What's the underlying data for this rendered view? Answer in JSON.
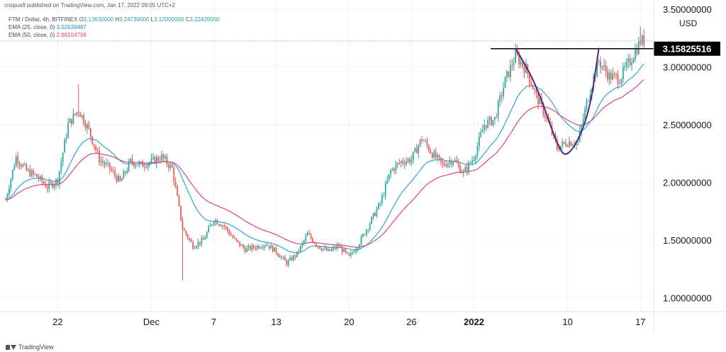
{
  "header": {
    "publisher": "crispus9 published on TradingView.com, Jan 17, 2022 09:05 UTC+2"
  },
  "legend": {
    "symbol": "FTM / Dollar, 4h, BITFINEX",
    "ohlc": [
      {
        "key": "O",
        "value": "3.13630000"
      },
      {
        "key": "H",
        "value": "3.24730000"
      },
      {
        "key": "L",
        "value": "3.12000000"
      },
      {
        "key": "C",
        "value": "3.22420000"
      }
    ],
    "ema1_label": "EMA (25, close, 0)",
    "ema1_value": "3.02639487",
    "ema2_label": "EMA (50, close, 0)",
    "ema2_value": "2.88104768"
  },
  "footer": {
    "brand": "TradingView"
  },
  "colors": {
    "up": "#26a69a",
    "down": "#ef5350",
    "ema25": "#2fa4d8",
    "ema50": "#e0457b",
    "pattern": "#4b2a86",
    "resistance": "#000000",
    "grid": "#f0f3fa",
    "axis_text": "#131722"
  },
  "chart_data": {
    "type": "candlestick",
    "currency": "USD",
    "y_axis_ticks": [
      "3.50000000",
      "3.00000000",
      "2.50000000",
      "2.00000000",
      "1.50000000",
      "1.00000000"
    ],
    "y_tick_values": [
      3.5,
      3.0,
      2.5,
      2.0,
      1.5,
      1.0
    ],
    "ylim": [
      0.88,
      3.58
    ],
    "x_axis_ticks": [
      "22",
      "Dec",
      "7",
      "13",
      "20",
      "26",
      "2022",
      "10",
      "17"
    ],
    "x_tick_dates": [
      "2021-11-22",
      "2021-12-01",
      "2021-12-07",
      "2021-12-13",
      "2021-12-20",
      "2021-12-26",
      "2022-01-01",
      "2022-01-10",
      "2022-01-17"
    ],
    "x_range": [
      "2021-11-17",
      "2022-01-18"
    ],
    "price_label": "3.15825516",
    "resistance_level": 3.15825516,
    "resistance_range": [
      "2022-01-05",
      "2022-01-17"
    ],
    "last_close": 3.2242,
    "cup_pattern": {
      "points": [
        {
          "date": "2022-01-05",
          "price": 3.16
        },
        {
          "date": "2022-01-07",
          "price": 2.85
        },
        {
          "date": "2022-01-09",
          "price": 2.32
        },
        {
          "date": "2022-01-10",
          "price": 2.2
        },
        {
          "date": "2022-01-12",
          "price": 2.55
        },
        {
          "date": "2022-01-13",
          "price": 3.16
        }
      ]
    },
    "price_path": [
      {
        "date": "2021-11-17",
        "price": 1.85
      },
      {
        "date": "2021-11-18",
        "price": 2.22
      },
      {
        "date": "2021-11-19",
        "price": 2.1
      },
      {
        "date": "2021-11-20",
        "price": 2.05
      },
      {
        "date": "2021-11-21",
        "price": 1.96
      },
      {
        "date": "2021-11-22",
        "price": 2.02
      },
      {
        "date": "2021-11-23",
        "price": 2.5
      },
      {
        "date": "2021-11-24",
        "price": 2.63
      },
      {
        "date": "2021-11-25",
        "price": 2.45
      },
      {
        "date": "2021-11-26",
        "price": 2.2
      },
      {
        "date": "2021-11-27",
        "price": 2.12
      },
      {
        "date": "2021-11-28",
        "price": 2.0
      },
      {
        "date": "2021-11-29",
        "price": 2.18
      },
      {
        "date": "2021-11-30",
        "price": 2.15
      },
      {
        "date": "2021-12-01",
        "price": 2.18
      },
      {
        "date": "2021-12-02",
        "price": 2.22
      },
      {
        "date": "2021-12-03",
        "price": 2.12
      },
      {
        "date": "2021-12-04",
        "price": 1.6
      },
      {
        "date": "2021-12-05",
        "price": 1.45
      },
      {
        "date": "2021-12-06",
        "price": 1.5
      },
      {
        "date": "2021-12-07",
        "price": 1.68
      },
      {
        "date": "2021-12-08",
        "price": 1.62
      },
      {
        "date": "2021-12-09",
        "price": 1.5
      },
      {
        "date": "2021-12-10",
        "price": 1.42
      },
      {
        "date": "2021-12-11",
        "price": 1.44
      },
      {
        "date": "2021-12-12",
        "price": 1.47
      },
      {
        "date": "2021-12-13",
        "price": 1.4
      },
      {
        "date": "2021-12-14",
        "price": 1.3
      },
      {
        "date": "2021-12-15",
        "price": 1.38
      },
      {
        "date": "2021-12-16",
        "price": 1.55
      },
      {
        "date": "2021-12-17",
        "price": 1.45
      },
      {
        "date": "2021-12-18",
        "price": 1.4
      },
      {
        "date": "2021-12-19",
        "price": 1.45
      },
      {
        "date": "2021-12-20",
        "price": 1.35
      },
      {
        "date": "2021-12-21",
        "price": 1.48
      },
      {
        "date": "2021-12-22",
        "price": 1.65
      },
      {
        "date": "2021-12-23",
        "price": 1.82
      },
      {
        "date": "2021-12-24",
        "price": 2.1
      },
      {
        "date": "2021-12-25",
        "price": 2.18
      },
      {
        "date": "2021-12-26",
        "price": 2.2
      },
      {
        "date": "2021-12-27",
        "price": 2.38
      },
      {
        "date": "2021-12-28",
        "price": 2.25
      },
      {
        "date": "2021-12-29",
        "price": 2.15
      },
      {
        "date": "2021-12-30",
        "price": 2.2
      },
      {
        "date": "2021-12-31",
        "price": 2.08
      },
      {
        "date": "2022-01-01",
        "price": 2.22
      },
      {
        "date": "2022-01-02",
        "price": 2.5
      },
      {
        "date": "2022-01-03",
        "price": 2.55
      },
      {
        "date": "2022-01-04",
        "price": 2.88
      },
      {
        "date": "2022-01-05",
        "price": 3.1
      },
      {
        "date": "2022-01-06",
        "price": 2.98
      },
      {
        "date": "2022-01-07",
        "price": 2.75
      },
      {
        "date": "2022-01-08",
        "price": 2.55
      },
      {
        "date": "2022-01-09",
        "price": 2.3
      },
      {
        "date": "2022-01-10",
        "price": 2.35
      },
      {
        "date": "2022-01-11",
        "price": 2.35
      },
      {
        "date": "2022-01-12",
        "price": 2.75
      },
      {
        "date": "2022-01-13",
        "price": 3.05
      },
      {
        "date": "2022-01-14",
        "price": 2.92
      },
      {
        "date": "2022-01-15",
        "price": 2.9
      },
      {
        "date": "2022-01-16",
        "price": 3.05
      },
      {
        "date": "2022-01-17",
        "price": 3.2242
      }
    ],
    "series": [
      {
        "name": "EMA (25, close, 0)",
        "last": 3.02639487
      },
      {
        "name": "EMA (50, close, 0)",
        "last": 2.88104768
      }
    ]
  }
}
